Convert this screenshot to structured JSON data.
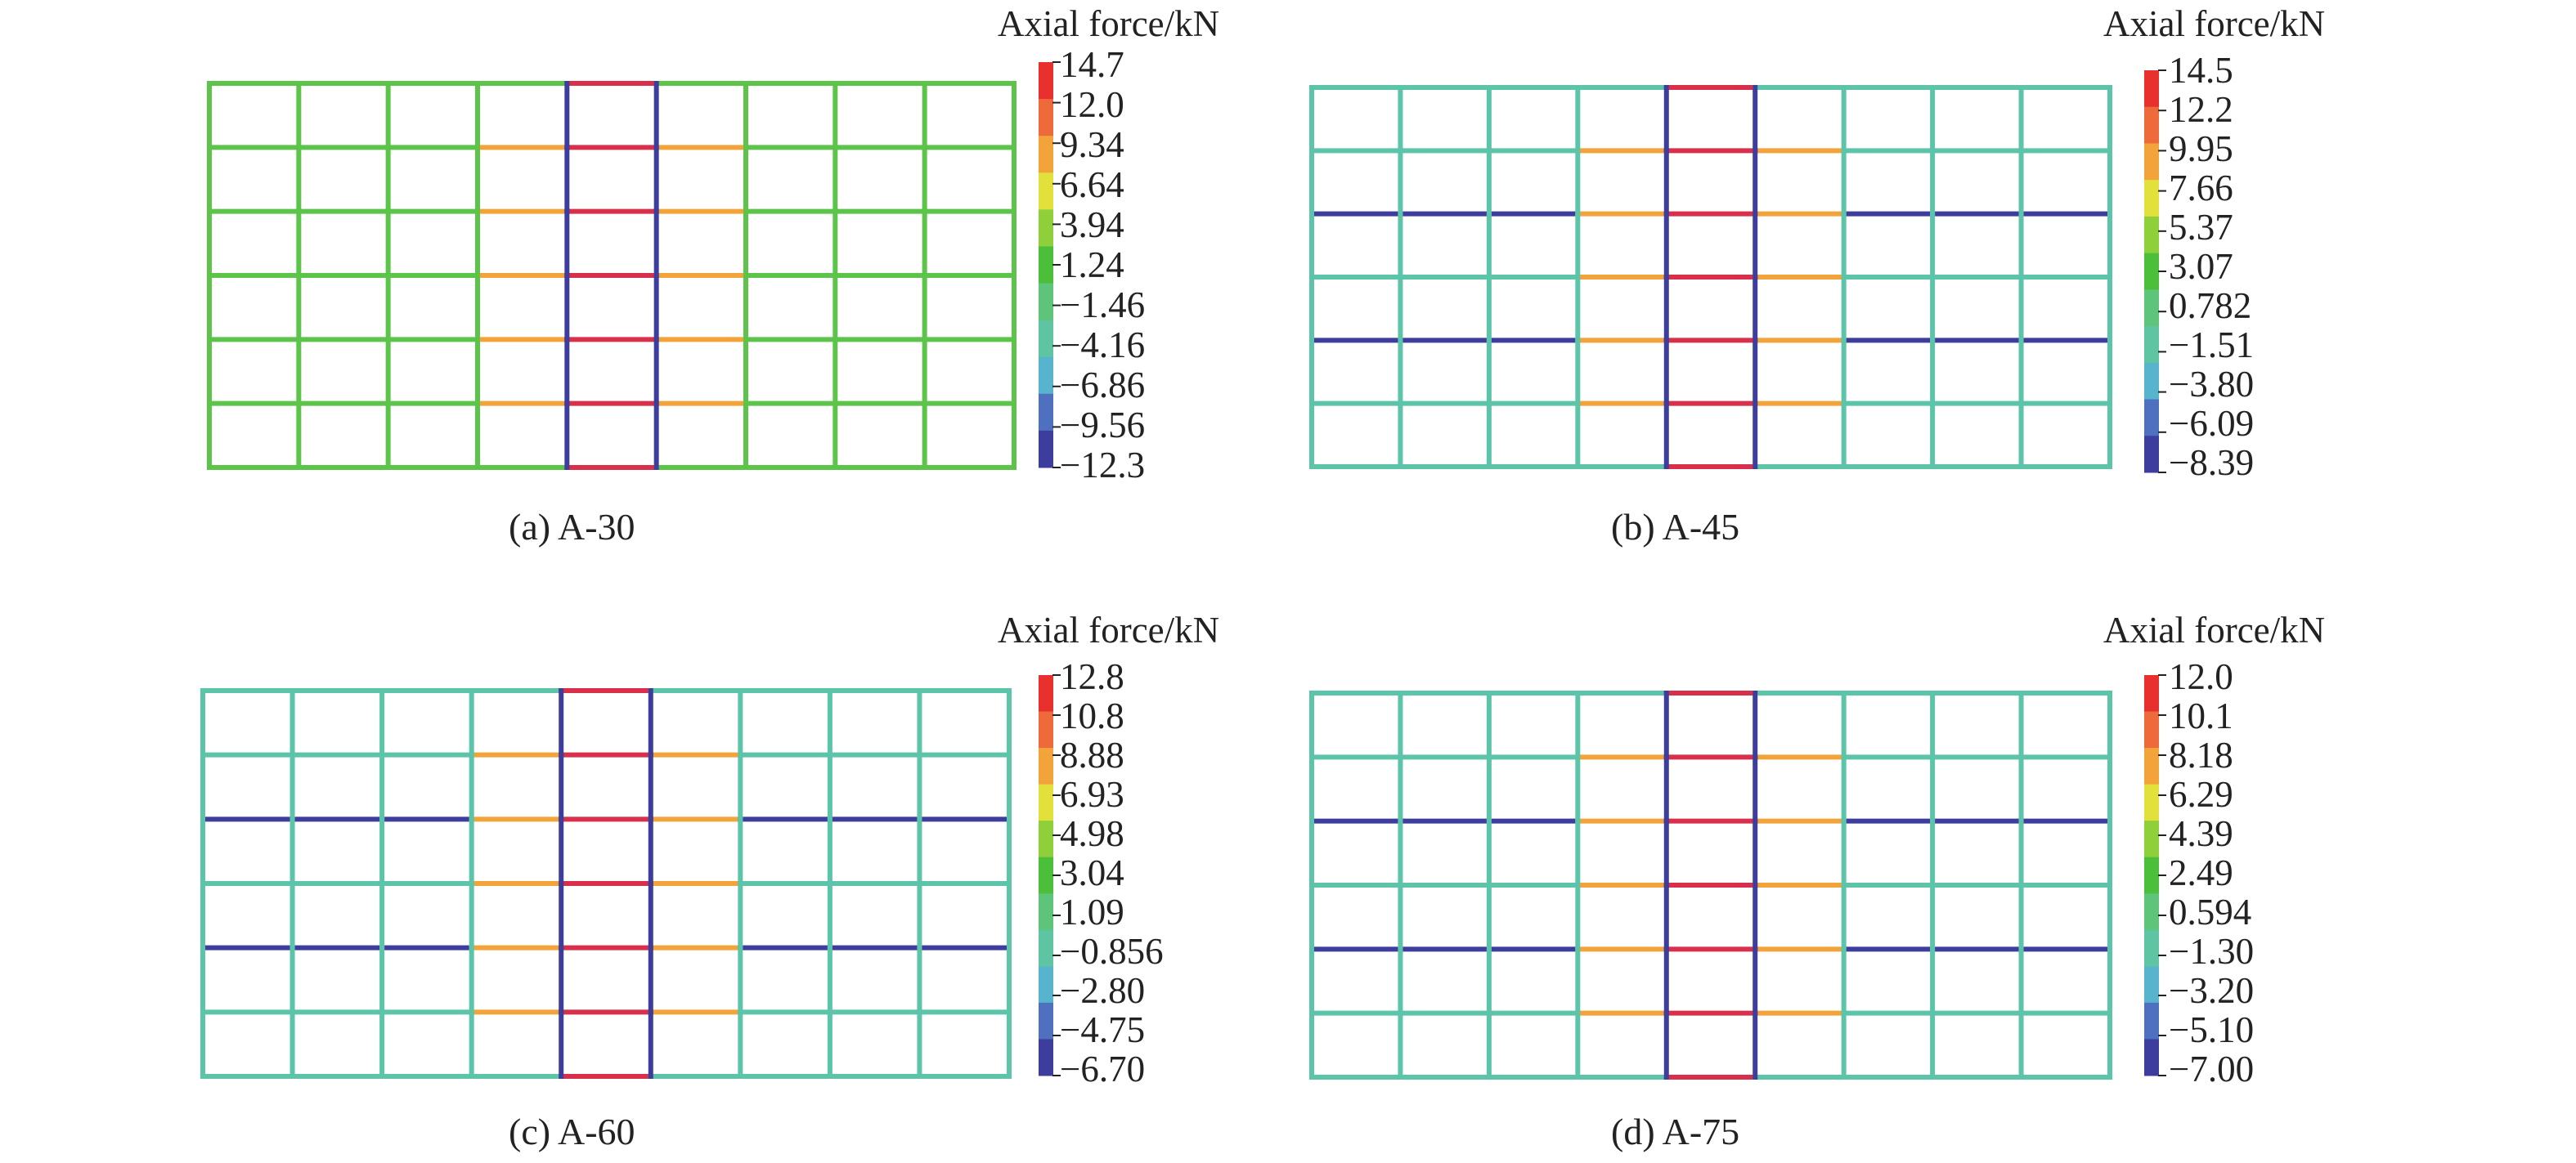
{
  "colors": {
    "background": "#ffffff",
    "text": "#222222",
    "scale": [
      "#3d3d9e",
      "#4f6fbf",
      "#58b4cc",
      "#5fc4a1",
      "#5dc47a",
      "#4bbf3a",
      "#8fcf3a",
      "#e2e03a",
      "#f2a43a",
      "#ee6a3a",
      "#e8302e"
    ]
  },
  "panels": [
    {
      "id": "a",
      "caption": "(a) A-30",
      "legend_title": "Axial force/kN",
      "legend_ticks": [
        "14.7",
        "12.0",
        "9.34",
        "6.64",
        "3.94",
        "1.24",
        "−1.46",
        "−4.16",
        "−6.86",
        "−9.56",
        "−12.3"
      ],
      "grid": {
        "columns": 9,
        "rows": 6
      },
      "base_member_color": "#5dc44a",
      "central_columns_color": "#3d3d9e",
      "central_beam_color": "#d8304a"
    },
    {
      "id": "b",
      "caption": "(b) A-45",
      "legend_title": "Axial force/kN",
      "legend_ticks": [
        "14.5",
        "12.2",
        "9.95",
        "7.66",
        "5.37",
        "3.07",
        "0.782",
        "−1.51",
        "−3.80",
        "−6.09",
        "−8.39"
      ],
      "grid": {
        "columns": 9,
        "rows": 6
      },
      "base_member_color": "#5cc4a8",
      "central_columns_color": "#3d3d9e",
      "central_beam_color": "#d8304a"
    },
    {
      "id": "c",
      "caption": "(c) A-60",
      "legend_title": "Axial force/kN",
      "legend_ticks": [
        "12.8",
        "10.8",
        "8.88",
        "6.93",
        "4.98",
        "3.04",
        "1.09",
        "−0.856",
        "−2.80",
        "−4.75",
        "−6.70"
      ],
      "grid": {
        "columns": 9,
        "rows": 6
      },
      "base_member_color": "#5cc4a8",
      "central_columns_color": "#3d3d9e",
      "central_beam_color": "#d8304a"
    },
    {
      "id": "d",
      "caption": "(d) A-75",
      "legend_title": "Axial force/kN",
      "legend_ticks": [
        "12.0",
        "10.1",
        "8.18",
        "6.29",
        "4.39",
        "2.49",
        "0.594",
        "−1.30",
        "−3.20",
        "−5.10",
        "−7.00"
      ],
      "grid": {
        "columns": 9,
        "rows": 6
      },
      "base_member_color": "#5cc4a8",
      "central_columns_color": "#3d3d9e",
      "central_beam_color": "#d8304a"
    }
  ]
}
